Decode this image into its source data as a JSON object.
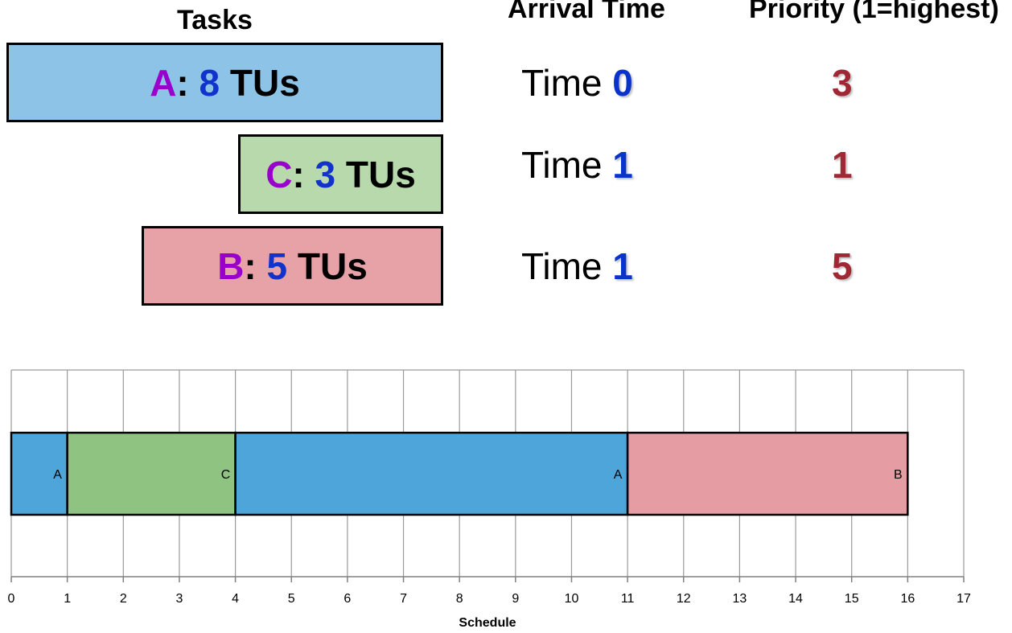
{
  "headers": {
    "tasks": "Tasks",
    "arrival": "Arrival Time",
    "priority": "Priority (1=highest)"
  },
  "tasks": [
    {
      "name": "A",
      "sep": ":",
      "units": "8",
      "unit_label": "TUs",
      "time_word": "Time",
      "arrival": "0",
      "priority": "3",
      "color": "#8dc3e6"
    },
    {
      "name": "C",
      "sep": ":",
      "units": "3",
      "unit_label": "TUs",
      "time_word": "Time",
      "arrival": "1",
      "priority": "1",
      "color": "#b7d9ac"
    },
    {
      "name": "B",
      "sep": ":",
      "units": "5",
      "unit_label": "TUs",
      "time_word": "Time",
      "arrival": "1",
      "priority": "5",
      "color": "#e6a2a7"
    }
  ],
  "chart_data": {
    "type": "bar",
    "orientation": "horizontal-stacked",
    "xlabel": "Schedule",
    "xlim": [
      0,
      17
    ],
    "xticks": [
      0,
      1,
      2,
      3,
      4,
      5,
      6,
      7,
      8,
      9,
      10,
      11,
      12,
      13,
      14,
      15,
      16,
      17
    ],
    "grid": true,
    "segments": [
      {
        "label": "A",
        "start": 0,
        "end": 1,
        "color": "#4ea5d9"
      },
      {
        "label": "C",
        "start": 1,
        "end": 4,
        "color": "#8fc382"
      },
      {
        "label": "A",
        "start": 4,
        "end": 11,
        "color": "#4ea5d9"
      },
      {
        "label": "B",
        "start": 11,
        "end": 16,
        "color": "#e59ca3"
      }
    ]
  }
}
